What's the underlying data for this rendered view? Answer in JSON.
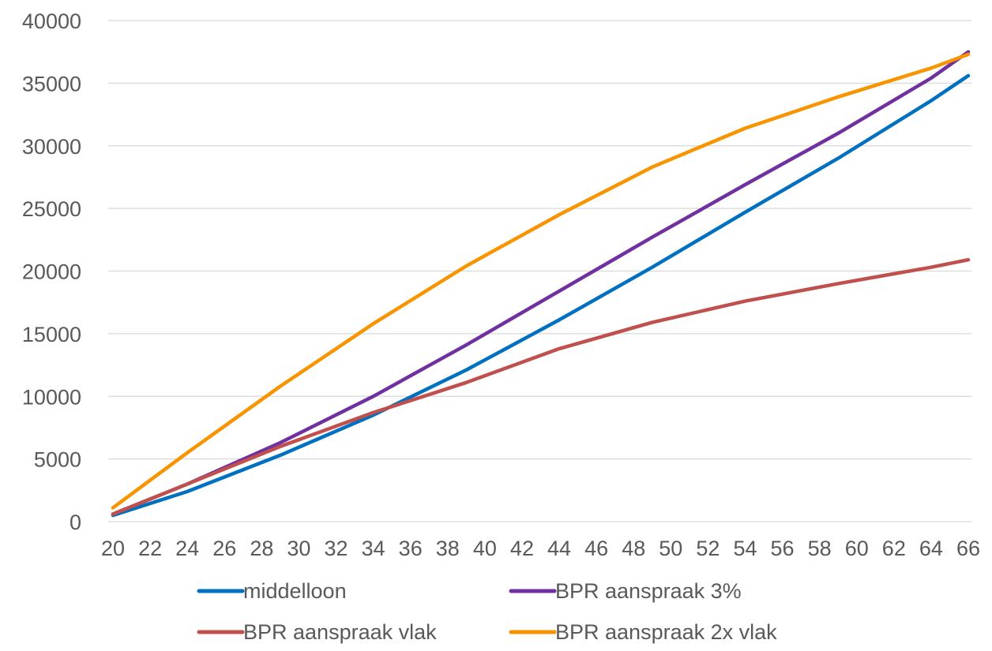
{
  "chart_data": {
    "type": "line",
    "title": "",
    "xlabel": "",
    "ylabel": "",
    "ylim": [
      0,
      40000
    ],
    "y_ticks": [
      "0",
      "5000",
      "10000",
      "15000",
      "20000",
      "25000",
      "30000",
      "35000",
      "40000"
    ],
    "x_ticks": [
      "20",
      "22",
      "24",
      "26",
      "28",
      "30",
      "32",
      "34",
      "36",
      "38",
      "40",
      "42",
      "44",
      "46",
      "48",
      "50",
      "52",
      "54",
      "56",
      "58",
      "60",
      "62",
      "64",
      "66"
    ],
    "xlim": [
      20,
      66
    ],
    "grid": "horizontal",
    "legend_position": "bottom",
    "x": [
      20,
      24,
      29,
      34,
      39,
      44,
      49,
      54,
      59,
      64,
      66
    ],
    "series": [
      {
        "name": "middelloon",
        "color": "#0070C0",
        "values": [
          500,
          2400,
          5300,
          8500,
          12100,
          16100,
          20300,
          24700,
          29000,
          33600,
          35600
        ]
      },
      {
        "name": "BPR aanspraak 3%",
        "color": "#7030A0",
        "values": [
          600,
          3000,
          6300,
          10000,
          14100,
          18400,
          22700,
          26900,
          31000,
          35400,
          37500
        ]
      },
      {
        "name": "BPR aanspraak vlak",
        "color": "#C0504D",
        "values": [
          600,
          3000,
          6000,
          8700,
          11100,
          13800,
          15900,
          17600,
          19000,
          20300,
          20900
        ]
      },
      {
        "name": "BPR aanspraak 2x vlak",
        "color": "#F79400",
        "values": [
          1100,
          5500,
          10800,
          15800,
          20400,
          24500,
          28300,
          31400,
          33900,
          36200,
          37300
        ]
      }
    ]
  }
}
